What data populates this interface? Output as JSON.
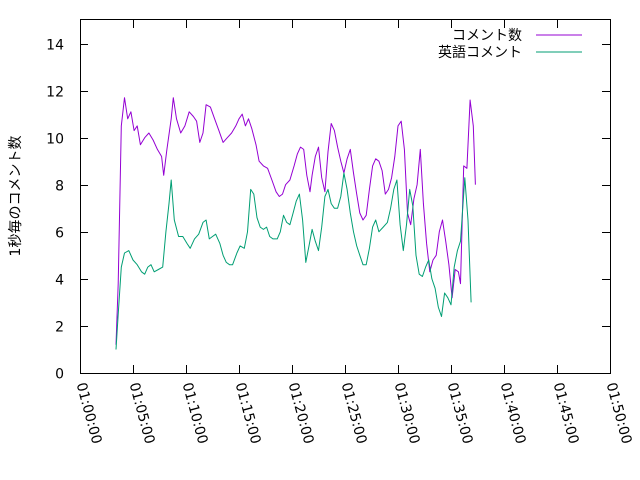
{
  "chart_data": {
    "type": "line",
    "title": "",
    "xlabel": "",
    "ylabel": "1秒毎のコメント数",
    "x_unit": "minutes",
    "xlim": [
      60,
      110
    ],
    "ylim": [
      0,
      15
    ],
    "x_ticks": [
      {
        "value": 60,
        "label": "01:00:00"
      },
      {
        "value": 65,
        "label": "01:05:00"
      },
      {
        "value": 70,
        "label": "01:10:00"
      },
      {
        "value": 75,
        "label": "01:15:00"
      },
      {
        "value": 80,
        "label": "01:20:00"
      },
      {
        "value": 85,
        "label": "01:25:00"
      },
      {
        "value": 90,
        "label": "01:30:00"
      },
      {
        "value": 95,
        "label": "01:35:00"
      },
      {
        "value": 100,
        "label": "01:40:00"
      },
      {
        "value": 105,
        "label": "01:45:00"
      },
      {
        "value": 110,
        "label": "01:50:00"
      }
    ],
    "y_ticks": [
      0,
      2,
      4,
      6,
      8,
      10,
      12,
      14
    ],
    "grid": false,
    "legend_position": "top-right",
    "series": [
      {
        "name": "コメント数",
        "color": "#9400d3",
        "points": [
          [
            63.4,
            1.2
          ],
          [
            63.6,
            3.8
          ],
          [
            63.9,
            10.5
          ],
          [
            64.2,
            11.7
          ],
          [
            64.5,
            10.8
          ],
          [
            64.8,
            11.1
          ],
          [
            65.1,
            10.3
          ],
          [
            65.4,
            10.5
          ],
          [
            65.7,
            9.7
          ],
          [
            66.1,
            10.0
          ],
          [
            66.5,
            10.2
          ],
          [
            66.9,
            9.9
          ],
          [
            67.3,
            9.5
          ],
          [
            67.7,
            9.2
          ],
          [
            67.9,
            8.4
          ],
          [
            68.2,
            9.5
          ],
          [
            68.6,
            10.8
          ],
          [
            68.8,
            11.7
          ],
          [
            69.1,
            10.8
          ],
          [
            69.5,
            10.2
          ],
          [
            69.9,
            10.5
          ],
          [
            70.3,
            11.1
          ],
          [
            70.7,
            10.9
          ],
          [
            71.0,
            10.7
          ],
          [
            71.3,
            9.8
          ],
          [
            71.6,
            10.2
          ],
          [
            71.9,
            11.4
          ],
          [
            72.3,
            11.3
          ],
          [
            72.7,
            10.8
          ],
          [
            73.1,
            10.3
          ],
          [
            73.5,
            9.8
          ],
          [
            73.9,
            10.0
          ],
          [
            74.3,
            10.2
          ],
          [
            74.7,
            10.5
          ],
          [
            75.0,
            10.8
          ],
          [
            75.3,
            11.0
          ],
          [
            75.6,
            10.5
          ],
          [
            75.9,
            10.8
          ],
          [
            76.2,
            10.4
          ],
          [
            76.6,
            9.7
          ],
          [
            76.9,
            9.0
          ],
          [
            77.3,
            8.8
          ],
          [
            77.7,
            8.7
          ],
          [
            78.1,
            8.2
          ],
          [
            78.5,
            7.7
          ],
          [
            78.8,
            7.5
          ],
          [
            79.1,
            7.6
          ],
          [
            79.4,
            8.0
          ],
          [
            79.8,
            8.2
          ],
          [
            80.2,
            8.8
          ],
          [
            80.5,
            9.3
          ],
          [
            80.8,
            9.6
          ],
          [
            81.1,
            9.5
          ],
          [
            81.4,
            8.4
          ],
          [
            81.7,
            7.7
          ],
          [
            81.9,
            8.4
          ],
          [
            82.2,
            9.2
          ],
          [
            82.5,
            9.6
          ],
          [
            82.8,
            8.3
          ],
          [
            83.1,
            7.7
          ],
          [
            83.4,
            9.4
          ],
          [
            83.7,
            10.6
          ],
          [
            84.0,
            10.3
          ],
          [
            84.3,
            9.6
          ],
          [
            84.6,
            9.0
          ],
          [
            84.9,
            8.5
          ],
          [
            85.2,
            9.1
          ],
          [
            85.5,
            9.5
          ],
          [
            85.8,
            8.5
          ],
          [
            86.1,
            7.6
          ],
          [
            86.4,
            6.8
          ],
          [
            86.7,
            6.5
          ],
          [
            87.0,
            6.7
          ],
          [
            87.3,
            7.8
          ],
          [
            87.6,
            8.8
          ],
          [
            87.9,
            9.1
          ],
          [
            88.2,
            9.0
          ],
          [
            88.5,
            8.6
          ],
          [
            88.8,
            7.6
          ],
          [
            89.1,
            7.8
          ],
          [
            89.4,
            8.3
          ],
          [
            89.7,
            9.2
          ],
          [
            90.0,
            10.5
          ],
          [
            90.3,
            10.7
          ],
          [
            90.6,
            9.5
          ],
          [
            90.9,
            6.8
          ],
          [
            91.2,
            6.3
          ],
          [
            91.5,
            7.4
          ],
          [
            91.8,
            8.0
          ],
          [
            92.1,
            9.5
          ],
          [
            92.4,
            7.2
          ],
          [
            92.7,
            5.5
          ],
          [
            93.0,
            4.3
          ],
          [
            93.3,
            4.8
          ],
          [
            93.6,
            5.0
          ],
          [
            93.9,
            6.0
          ],
          [
            94.2,
            6.5
          ],
          [
            94.5,
            5.6
          ],
          [
            94.8,
            4.6
          ],
          [
            95.1,
            3.2
          ],
          [
            95.4,
            4.4
          ],
          [
            95.7,
            4.3
          ],
          [
            95.9,
            3.8
          ],
          [
            96.2,
            8.8
          ],
          [
            96.5,
            8.7
          ],
          [
            96.8,
            11.6
          ],
          [
            97.1,
            10.5
          ],
          [
            97.3,
            8.0
          ]
        ]
      },
      {
        "name": "英語コメント",
        "color": "#009e73",
        "points": [
          [
            63.4,
            1.0
          ],
          [
            63.6,
            2.5
          ],
          [
            63.9,
            4.5
          ],
          [
            64.2,
            5.1
          ],
          [
            64.6,
            5.2
          ],
          [
            65.0,
            4.8
          ],
          [
            65.4,
            4.6
          ],
          [
            65.8,
            4.3
          ],
          [
            66.1,
            4.2
          ],
          [
            66.4,
            4.5
          ],
          [
            66.7,
            4.6
          ],
          [
            67.0,
            4.3
          ],
          [
            67.4,
            4.4
          ],
          [
            67.8,
            4.5
          ],
          [
            68.1,
            6.0
          ],
          [
            68.4,
            7.2
          ],
          [
            68.6,
            8.2
          ],
          [
            68.9,
            6.5
          ],
          [
            69.3,
            5.8
          ],
          [
            69.7,
            5.8
          ],
          [
            70.1,
            5.5
          ],
          [
            70.4,
            5.3
          ],
          [
            70.8,
            5.7
          ],
          [
            71.2,
            5.9
          ],
          [
            71.6,
            6.4
          ],
          [
            71.9,
            6.5
          ],
          [
            72.2,
            5.7
          ],
          [
            72.5,
            5.8
          ],
          [
            72.8,
            5.9
          ],
          [
            73.2,
            5.5
          ],
          [
            73.5,
            5.0
          ],
          [
            73.8,
            4.7
          ],
          [
            74.1,
            4.6
          ],
          [
            74.4,
            4.6
          ],
          [
            74.8,
            5.1
          ],
          [
            75.1,
            5.4
          ],
          [
            75.5,
            5.3
          ],
          [
            75.8,
            6.0
          ],
          [
            76.1,
            7.8
          ],
          [
            76.4,
            7.6
          ],
          [
            76.7,
            6.6
          ],
          [
            77.0,
            6.2
          ],
          [
            77.3,
            6.1
          ],
          [
            77.6,
            6.2
          ],
          [
            77.9,
            5.8
          ],
          [
            78.2,
            5.7
          ],
          [
            78.6,
            5.7
          ],
          [
            78.9,
            6.0
          ],
          [
            79.2,
            6.7
          ],
          [
            79.5,
            6.4
          ],
          [
            79.8,
            6.3
          ],
          [
            80.1,
            6.8
          ],
          [
            80.4,
            7.3
          ],
          [
            80.7,
            7.6
          ],
          [
            81.0,
            6.5
          ],
          [
            81.3,
            4.7
          ],
          [
            81.6,
            5.4
          ],
          [
            81.9,
            6.1
          ],
          [
            82.2,
            5.6
          ],
          [
            82.5,
            5.2
          ],
          [
            82.8,
            6.2
          ],
          [
            83.1,
            7.5
          ],
          [
            83.4,
            7.8
          ],
          [
            83.7,
            7.2
          ],
          [
            84.0,
            7.0
          ],
          [
            84.3,
            7.0
          ],
          [
            84.6,
            7.5
          ],
          [
            84.9,
            8.5
          ],
          [
            85.2,
            7.8
          ],
          [
            85.5,
            6.8
          ],
          [
            85.8,
            6.0
          ],
          [
            86.1,
            5.4
          ],
          [
            86.4,
            5.0
          ],
          [
            86.7,
            4.6
          ],
          [
            87.0,
            4.6
          ],
          [
            87.3,
            5.3
          ],
          [
            87.6,
            6.2
          ],
          [
            87.9,
            6.5
          ],
          [
            88.2,
            6.0
          ],
          [
            88.6,
            6.2
          ],
          [
            89.0,
            6.4
          ],
          [
            89.3,
            7.0
          ],
          [
            89.6,
            7.8
          ],
          [
            89.9,
            8.2
          ],
          [
            90.2,
            6.3
          ],
          [
            90.5,
            5.2
          ],
          [
            90.8,
            6.3
          ],
          [
            91.1,
            7.8
          ],
          [
            91.4,
            7.1
          ],
          [
            91.7,
            5.0
          ],
          [
            92.0,
            4.2
          ],
          [
            92.3,
            4.1
          ],
          [
            92.6,
            4.5
          ],
          [
            92.9,
            4.8
          ],
          [
            93.2,
            4.0
          ],
          [
            93.5,
            3.6
          ],
          [
            93.8,
            2.8
          ],
          [
            94.1,
            2.4
          ],
          [
            94.4,
            3.4
          ],
          [
            94.7,
            3.2
          ],
          [
            95.0,
            2.9
          ],
          [
            95.3,
            4.5
          ],
          [
            95.6,
            5.2
          ],
          [
            95.9,
            5.6
          ],
          [
            96.3,
            8.3
          ],
          [
            96.6,
            6.5
          ],
          [
            96.9,
            3.0
          ]
        ]
      }
    ]
  }
}
